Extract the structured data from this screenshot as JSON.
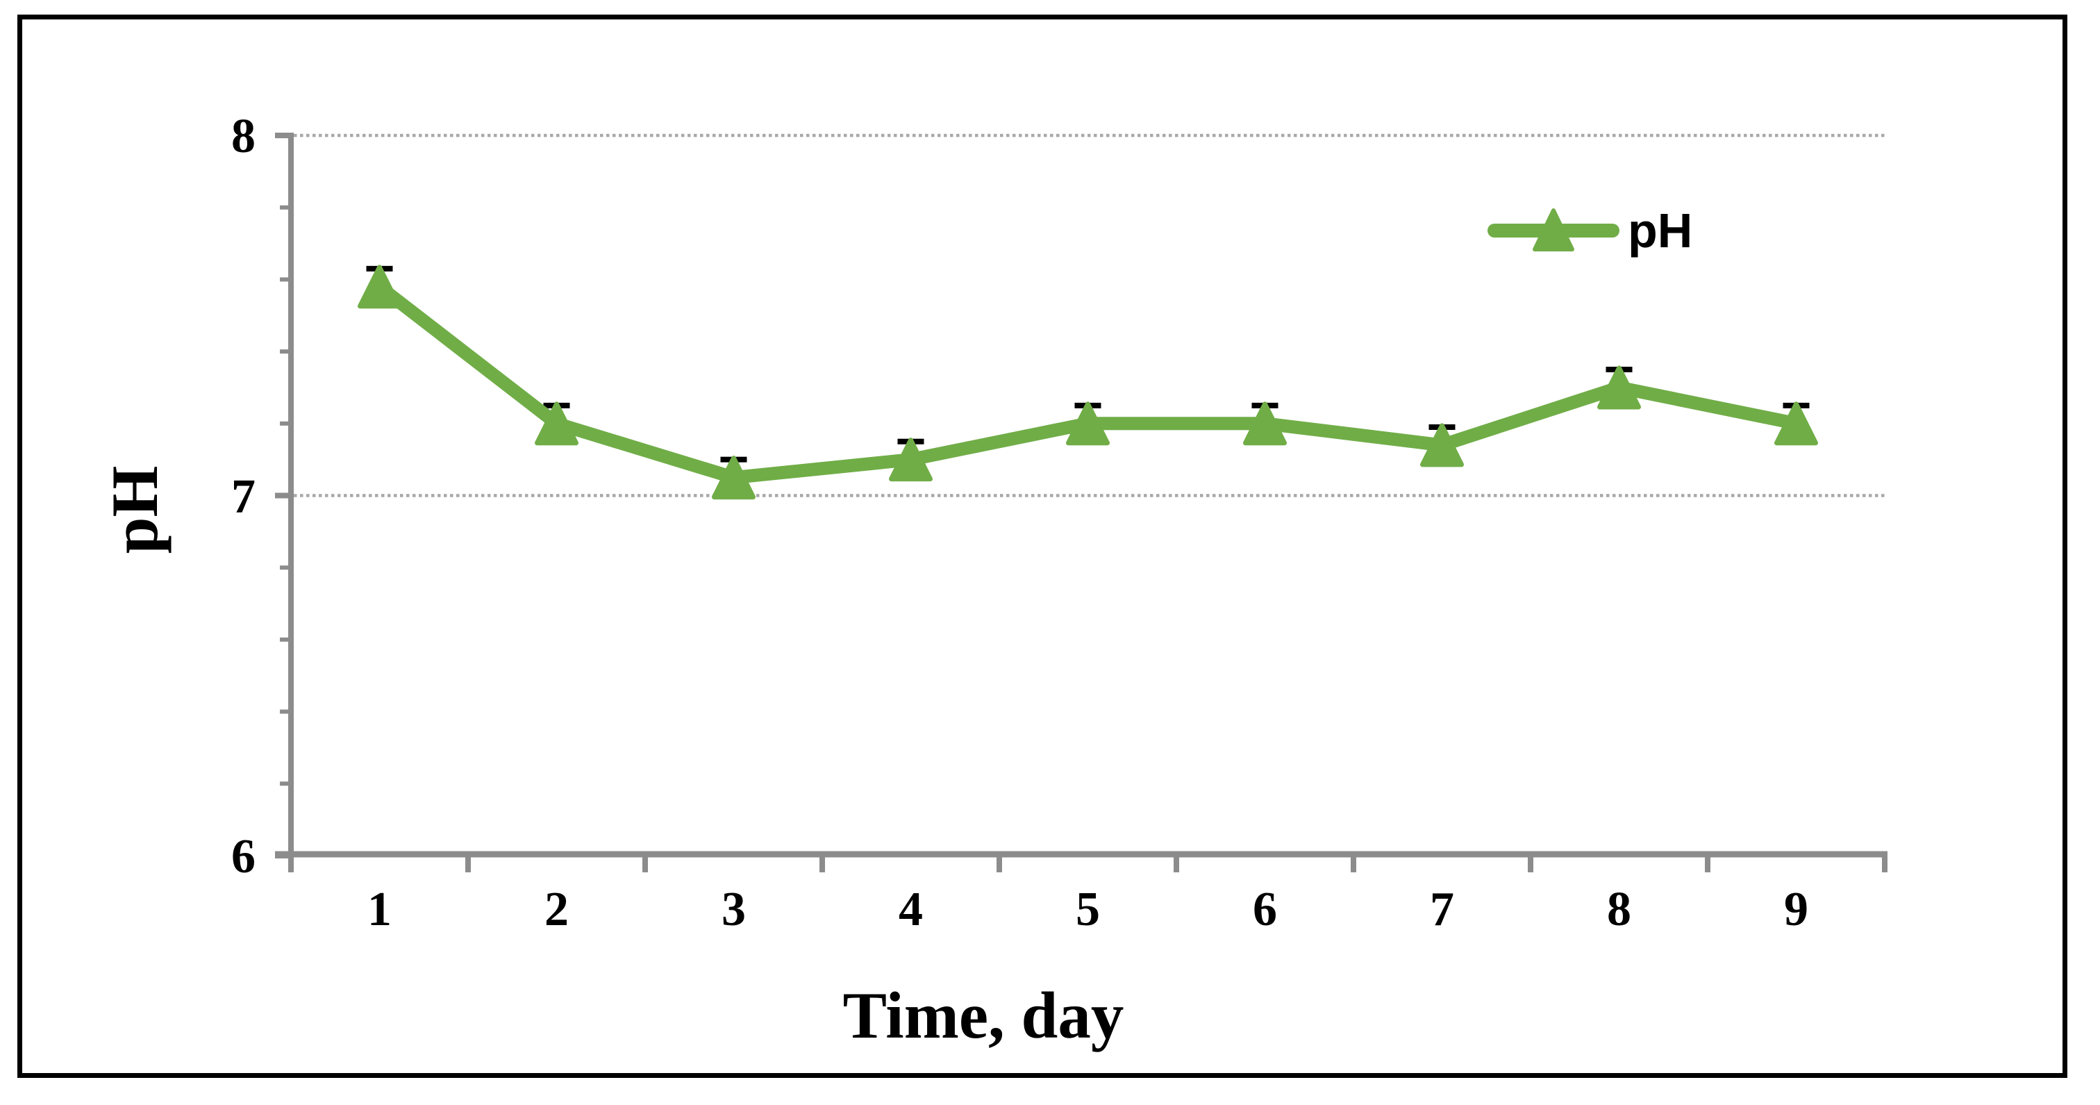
{
  "figure": {
    "background": "#FFFFFF",
    "border_color": "#000000"
  },
  "chart_data": {
    "type": "line",
    "title": "",
    "categories": [
      "1",
      "2",
      "3",
      "4",
      "5",
      "6",
      "7",
      "8",
      "9"
    ],
    "series": [
      {
        "name": "pH",
        "values": [
          7.58,
          7.2,
          7.05,
          7.1,
          7.2,
          7.2,
          7.14,
          7.3,
          7.2
        ],
        "error_bar_plus_minus": 0.05,
        "color": "#70AD47",
        "error_bar_color": "#000000",
        "marker": "triangle-up"
      }
    ],
    "xlabel": "Time, day",
    "ylabel": "pH",
    "ylim": [
      6,
      8
    ],
    "yticks": [
      "6",
      "7",
      "8"
    ],
    "y_minor_tick_step": 0.2,
    "grid": {
      "horizontal_major": true,
      "style": "dotted"
    },
    "legend": {
      "position": "upper-right-inside",
      "entries": [
        "pH"
      ]
    },
    "axis_color": "#8C8C8C",
    "gridline_color": "#A8A8A8",
    "text_color": "#000000"
  }
}
